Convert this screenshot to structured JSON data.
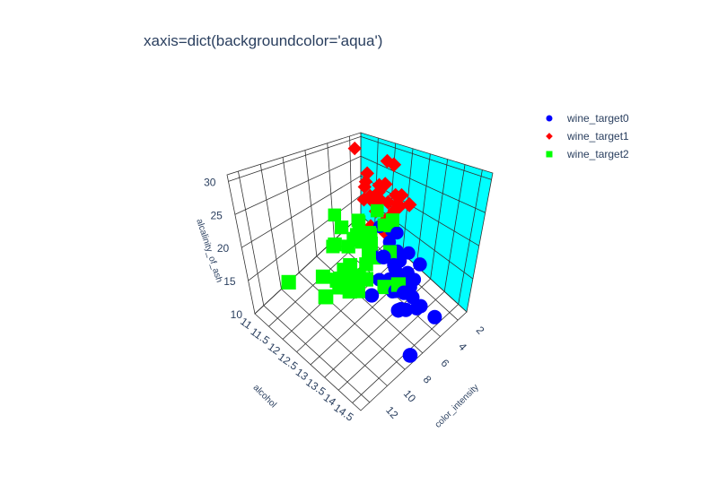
{
  "chart_data": {
    "type": "scatter3d",
    "title": "xaxis=dict(backgroundcolor='aqua')",
    "axes": {
      "x": {
        "label": "color_intensity",
        "ticks": [
          "2",
          "4",
          "6",
          "8",
          "10",
          "12"
        ],
        "range": [
          1,
          13
        ],
        "backgroundcolor": "#00ffff"
      },
      "y": {
        "label": "alcohol",
        "ticks": [
          "11",
          "11.5",
          "12",
          "12.5",
          "13",
          "13.5",
          "14",
          "14.5"
        ],
        "range": [
          11,
          14.8
        ]
      },
      "z": {
        "label": "alcalinity_of_ash",
        "ticks": [
          "10",
          "15",
          "20",
          "25",
          "30"
        ],
        "range": [
          10,
          31
        ]
      }
    },
    "legend_position": "top-right",
    "series": [
      {
        "name": "wine_target0",
        "color": "#0000ff",
        "symbol": "circle",
        "points": [
          [
            5.6,
            14.2,
            15.6
          ],
          [
            4.4,
            13.2,
            11.2
          ],
          [
            5.7,
            13.2,
            18.6
          ],
          [
            7.8,
            14.4,
            16.8
          ],
          [
            4.3,
            13.2,
            21
          ],
          [
            6.8,
            14.2,
            15.2
          ],
          [
            5.3,
            14.4,
            14.6
          ],
          [
            5.7,
            14.1,
            17.6
          ],
          [
            5,
            14.8,
            14
          ],
          [
            5.2,
            13.9,
            16
          ],
          [
            7.2,
            14.1,
            18
          ],
          [
            5.6,
            14.1,
            16.8
          ],
          [
            5.4,
            13.8,
            16
          ],
          [
            7.5,
            14.8,
            11.4
          ],
          [
            7.3,
            14.4,
            18.8
          ],
          [
            6.2,
            13.6,
            17
          ],
          [
            6.6,
            14.3,
            15.2
          ],
          [
            8.7,
            13.8,
            18
          ],
          [
            5.1,
            14.2,
            20
          ],
          [
            5.7,
            13.6,
            15.2
          ],
          [
            5,
            14.2,
            13.2
          ],
          [
            4.6,
            13.7,
            14.6
          ],
          [
            5.3,
            13.9,
            18
          ],
          [
            6,
            13.7,
            18.8
          ],
          [
            3.8,
            13.1,
            17
          ],
          [
            6.1,
            13.8,
            16
          ],
          [
            4.3,
            13.6,
            19
          ],
          [
            4.5,
            13.3,
            17.4
          ],
          [
            6.3,
            13.3,
            16
          ],
          [
            5.8,
            13.6,
            18.8
          ],
          [
            6.3,
            13.9,
            18
          ],
          [
            6.1,
            14.1,
            16.8
          ],
          [
            7.2,
            13.3,
            21.6
          ],
          [
            3.9,
            12.9,
            20
          ],
          [
            4.1,
            13.3,
            16.4
          ],
          [
            5,
            13.7,
            16.6
          ],
          [
            8.9,
            14.2,
            25
          ],
          [
            4.7,
            13.1,
            19.6
          ],
          [
            4.5,
            13.9,
            16
          ],
          [
            5.1,
            12.9,
            22
          ]
        ]
      },
      {
        "name": "wine_target1",
        "color": "#ff0000",
        "symbol": "diamond",
        "points": [
          [
            1.9,
            12.4,
            10.6
          ],
          [
            2.6,
            12.3,
            16.8
          ],
          [
            3.2,
            12.6,
            20.4
          ],
          [
            2.8,
            11.4,
            30
          ],
          [
            3.2,
            11.8,
            21
          ],
          [
            2.6,
            12,
            18.6
          ],
          [
            3,
            12.6,
            30
          ],
          [
            2.5,
            11.6,
            22
          ],
          [
            3,
            12.2,
            25
          ],
          [
            3.9,
            12.7,
            19
          ],
          [
            2.9,
            13.1,
            24
          ],
          [
            2.5,
            12.3,
            18
          ],
          [
            2.4,
            11.6,
            23
          ],
          [
            3.4,
            12.5,
            26.5
          ],
          [
            2,
            12.1,
            28.5
          ],
          [
            2.1,
            12.3,
            17.5
          ],
          [
            3.1,
            12,
            21.5
          ],
          [
            2.6,
            11.8,
            21
          ],
          [
            2.5,
            12.7,
            22
          ],
          [
            4.4,
            12.4,
            19.5
          ],
          [
            2.3,
            11.9,
            20
          ],
          [
            3.3,
            12.8,
            22.5
          ],
          [
            1.3,
            12.2,
            21
          ],
          [
            2.7,
            12.1,
            23
          ],
          [
            3.6,
            12.6,
            19.5
          ],
          [
            2.9,
            11.8,
            26
          ],
          [
            2.2,
            12,
            20.5
          ],
          [
            2.7,
            12.4,
            22
          ],
          [
            1.7,
            12.5,
            22.5
          ],
          [
            3.1,
            12.8,
            23.5
          ]
        ]
      },
      {
        "name": "wine_target2",
        "color": "#00ff00",
        "symbol": "square",
        "points": [
          [
            4.1,
            12.9,
            21
          ],
          [
            5.4,
            12.9,
            25
          ],
          [
            5.7,
            12.8,
            21
          ],
          [
            5,
            13,
            22.5
          ],
          [
            5.5,
            13.4,
            25
          ],
          [
            7.7,
            13.3,
            20
          ],
          [
            6.6,
            12.7,
            24
          ],
          [
            9.2,
            12.8,
            23
          ],
          [
            6.3,
            13,
            21.5
          ],
          [
            5.6,
            13.4,
            20
          ],
          [
            6.2,
            12.6,
            23
          ],
          [
            7.9,
            13.5,
            24
          ],
          [
            9.4,
            13.6,
            21
          ],
          [
            8.2,
            12.9,
            22
          ],
          [
            8.4,
            13.4,
            24.5
          ],
          [
            9.8,
            13.7,
            19.5
          ],
          [
            10.5,
            13.6,
            22.5
          ],
          [
            10.8,
            12.9,
            20
          ],
          [
            10.2,
            13.4,
            22
          ],
          [
            7.3,
            12.2,
            24
          ],
          [
            10,
            13.5,
            19
          ],
          [
            9.3,
            13.3,
            21.5
          ],
          [
            8.5,
            12.8,
            25
          ],
          [
            9.7,
            13.5,
            20.5
          ],
          [
            9.3,
            13.8,
            21
          ],
          [
            11.8,
            13.7,
            23
          ],
          [
            10.7,
            13.4,
            20
          ],
          [
            13,
            12.5,
            20
          ],
          [
            8.6,
            13.2,
            24.5
          ],
          [
            9.6,
            13.3,
            18.5
          ],
          [
            10.3,
            13.3,
            20.5
          ],
          [
            7.6,
            14.3,
            20
          ],
          [
            5.9,
            13,
            18
          ],
          [
            7.1,
            13.2,
            24
          ],
          [
            8.5,
            12.5,
            21
          ],
          [
            9.2,
            13.5,
            26.5
          ],
          [
            12.1,
            13.4,
            20
          ],
          [
            8.4,
            13.6,
            23
          ],
          [
            6.8,
            12.9,
            22
          ],
          [
            7.7,
            13.9,
            18.5
          ]
        ]
      }
    ]
  }
}
